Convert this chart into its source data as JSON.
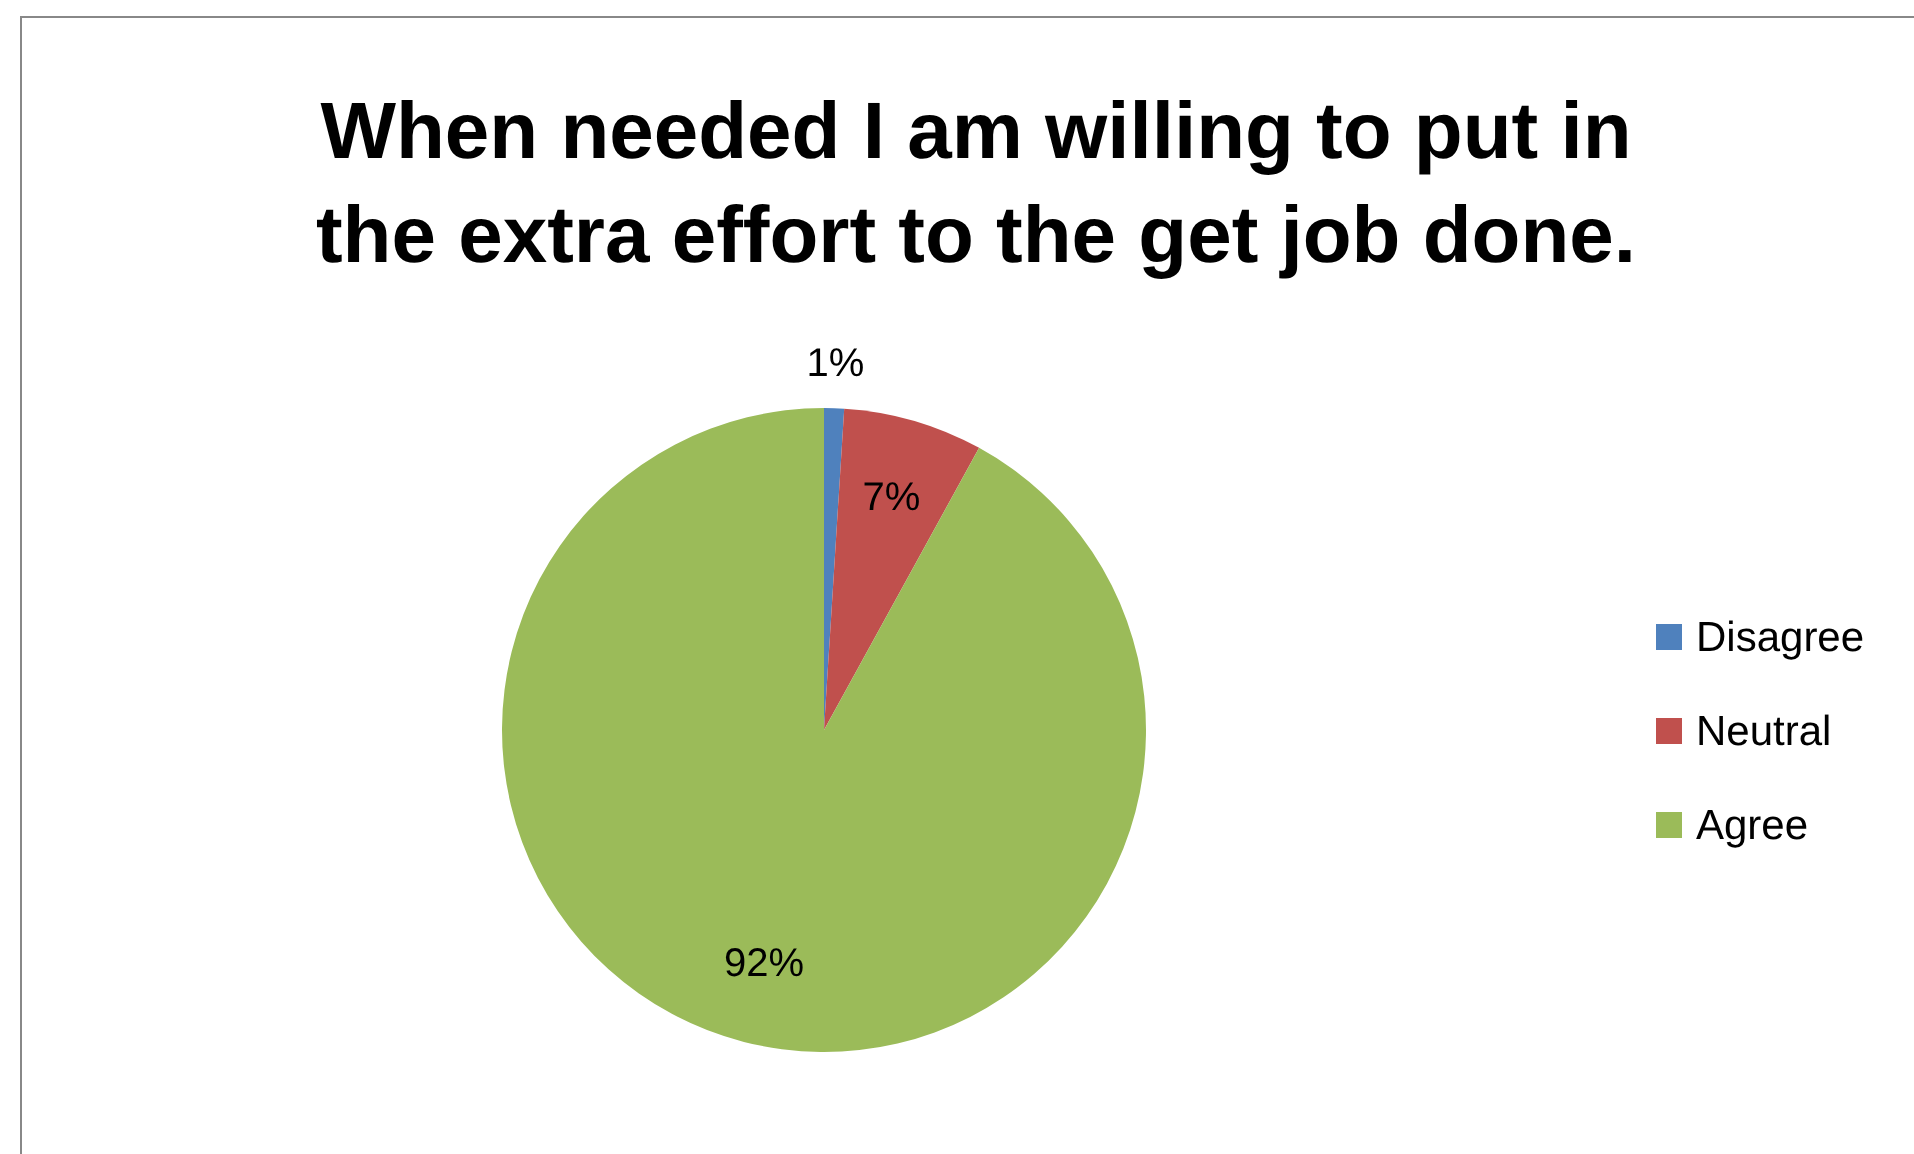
{
  "chart_data": {
    "type": "pie",
    "title": "When needed I am willing to put in the extra effort to the get job done.",
    "categories": [
      "Disagree",
      "Neutral",
      "Agree"
    ],
    "values": [
      1,
      7,
      92
    ],
    "colors": [
      "#4f81bd",
      "#c0504d",
      "#9bbb59"
    ],
    "value_labels": [
      "1%",
      "7%",
      "92%"
    ],
    "legend": "right"
  }
}
